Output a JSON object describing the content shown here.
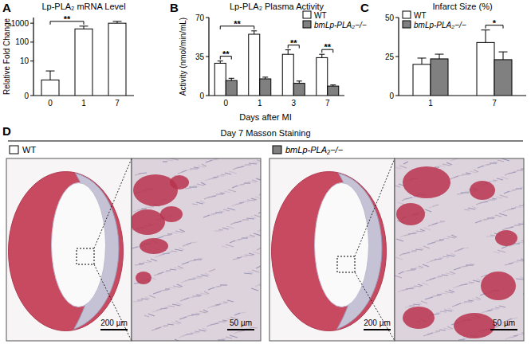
{
  "chart_data": [
    {
      "type": "bar",
      "label": "A",
      "title": "Lp-PLA₂ mRNA Level",
      "ylabel": "Relative Fold Change",
      "categories": [
        "0",
        "1",
        "7"
      ],
      "series": [
        {
          "name": "WT",
          "color": "#ffffff",
          "values": [
            1,
            500,
            1000
          ],
          "errors": [
            2,
            200,
            250
          ]
        }
      ],
      "log": "y",
      "ylim": [
        0.15,
        2000
      ],
      "yticks": [
        {
          "value": 0.15,
          "label": "0"
        },
        10,
        100,
        1000
      ],
      "annotations": [
        {
          "text": "**",
          "categories": [
            "0",
            "1"
          ]
        }
      ]
    },
    {
      "type": "bar",
      "label": "B",
      "title": "Lp-PLA₂ Plasma Activity",
      "ylabel": "Activity (nmol/min/mL)",
      "xlabel": "Days after MI",
      "categories": [
        "0",
        "1",
        "3",
        "7"
      ],
      "series": [
        {
          "name": "WT",
          "color": "#ffffff",
          "values": [
            29,
            55,
            37,
            34
          ],
          "errors": [
            2,
            3,
            4,
            3
          ]
        },
        {
          "name": "bmLp-PLA₂−/−",
          "color": "#808080",
          "values": [
            13.5,
            15,
            11,
            8.5
          ],
          "errors": [
            2,
            1.5,
            2,
            1
          ]
        }
      ],
      "ylim": [
        0,
        70
      ],
      "yticks": [
        0,
        35,
        70
      ],
      "legend": "upper right",
      "annotations": [
        {
          "text": "**",
          "categories": [
            "0",
            "1"
          ]
        },
        {
          "text": "**",
          "categories": [
            "0"
          ]
        },
        {
          "text": "**",
          "categories": [
            "3"
          ]
        },
        {
          "text": "**",
          "categories": [
            "7"
          ]
        }
      ]
    },
    {
      "type": "bar",
      "label": "C",
      "title": "Infarct Size (%)",
      "categories": [
        "1",
        "7"
      ],
      "series": [
        {
          "name": "WT",
          "color": "#ffffff",
          "values": [
            20,
            34
          ],
          "errors": [
            4,
            8
          ]
        },
        {
          "name": "bmLp-PLA₂−/−",
          "color": "#808080",
          "values": [
            23.5,
            23
          ],
          "errors": [
            3,
            5
          ]
        }
      ],
      "ylim": [
        0,
        50
      ],
      "yticks": [
        0,
        25,
        50
      ],
      "legend": "upper left",
      "annotations": [
        {
          "text": "*",
          "categories": [
            "7"
          ]
        }
      ]
    }
  ],
  "image_panel": {
    "label": "D",
    "title": "Day 7 Masson Staining",
    "groups": [
      {
        "name": "WT",
        "color": "#ffffff",
        "scale_bars": [
          "200 µm",
          "50 µm"
        ]
      },
      {
        "name": "bmLp-PLA₂−/−",
        "color": "#808080",
        "scale_bars": [
          "200 µm",
          "50 µm"
        ]
      }
    ]
  }
}
